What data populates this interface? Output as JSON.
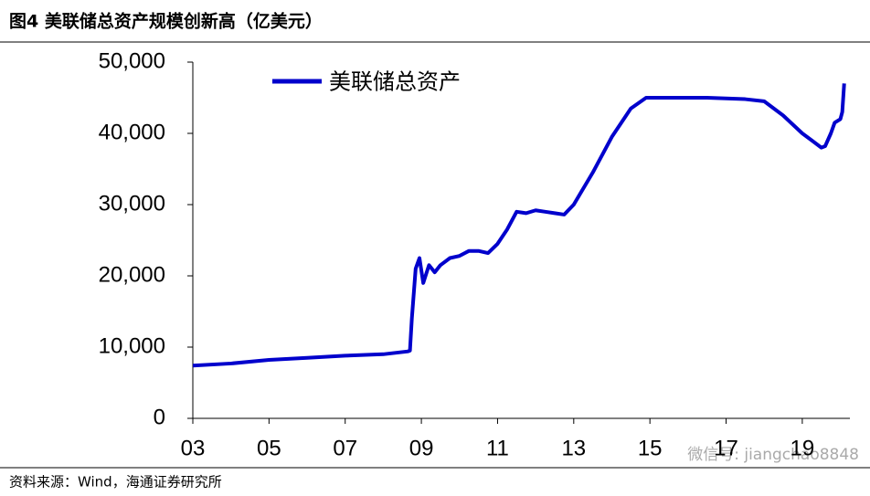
{
  "chart_data": {
    "type": "line",
    "title": "图4  美联储总资产规模创新高（亿美元）",
    "source": "资料来源：Wind，海通证券研究所",
    "watermark": "微信号: jiangchao8848",
    "x": [
      2003.0,
      2004.0,
      2005.0,
      2006.0,
      2007.0,
      2008.0,
      2008.65,
      2008.7,
      2008.75,
      2008.85,
      2008.95,
      2009.05,
      2009.2,
      2009.35,
      2009.5,
      2009.75,
      2010.0,
      2010.25,
      2010.5,
      2010.75,
      2011.0,
      2011.25,
      2011.5,
      2011.75,
      2012.0,
      2012.25,
      2012.5,
      2012.75,
      2013.0,
      2013.5,
      2014.0,
      2014.5,
      2014.9,
      2015.5,
      2016.5,
      2017.5,
      2018.0,
      2018.5,
      2019.0,
      2019.5,
      2019.6,
      2019.75,
      2019.85,
      2020.0,
      2020.05,
      2020.1
    ],
    "series": [
      {
        "name": "美联储总资产",
        "color": "#0000cc",
        "values": [
          7400,
          7700,
          8200,
          8500,
          8800,
          9000,
          9400,
          9500,
          14000,
          21000,
          22500,
          19000,
          21500,
          20500,
          21500,
          22500,
          22800,
          23500,
          23500,
          23200,
          24500,
          26500,
          29000,
          28800,
          29200,
          29000,
          28800,
          28600,
          30000,
          34500,
          39500,
          43500,
          45000,
          45000,
          45000,
          44800,
          44500,
          42500,
          40000,
          38000,
          38200,
          40000,
          41500,
          42000,
          43000,
          47000
        ]
      }
    ],
    "xlim": [
      2003,
      2020.25
    ],
    "xticks": [
      {
        "value": 2003,
        "label": "03"
      },
      {
        "value": 2005,
        "label": "05"
      },
      {
        "value": 2007,
        "label": "07"
      },
      {
        "value": 2009,
        "label": "09"
      },
      {
        "value": 2011,
        "label": "11"
      },
      {
        "value": 2013,
        "label": "13"
      },
      {
        "value": 2015,
        "label": "15"
      },
      {
        "value": 2017,
        "label": "17"
      },
      {
        "value": 2019,
        "label": "19"
      }
    ],
    "ylim": [
      0,
      50000
    ],
    "yticks": [
      0,
      {
        "value": 10000,
        "label": "10,000"
      },
      {
        "value": 20000,
        "label": "20,000"
      },
      {
        "value": 30000,
        "label": "30,000"
      },
      {
        "value": 40000,
        "label": "40,000"
      },
      {
        "value": 50000,
        "label": "50,000"
      }
    ]
  }
}
